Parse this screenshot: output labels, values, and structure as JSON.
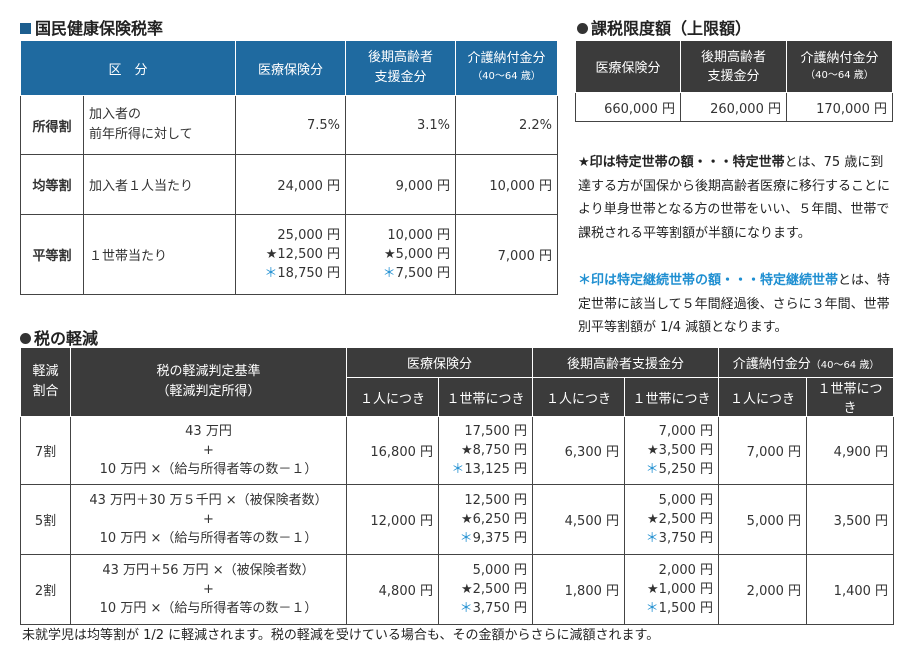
{
  "rates": {
    "title": "国民健康保険税率",
    "headers": [
      "区　分",
      "医療保険分",
      "後期高齢者\n支援金分",
      "介護納付金分",
      "（40～64 歳）"
    ],
    "rows": [
      {
        "label": "所得割",
        "desc": "加入者の\n前年所得に対して",
        "medical": "7.5%",
        "support": "3.1%",
        "care": "2.2%"
      },
      {
        "label": "均等割",
        "desc": "加入者１人当たり",
        "medical": "24,000 円",
        "support": "9,000 円",
        "care": "10,000 円"
      },
      {
        "label": "平等割",
        "desc": "１世帯当たり",
        "medical": [
          "25,000 円",
          "★12,500 円",
          "18,750 円"
        ],
        "support": [
          "10,000 円",
          "★5,000 円",
          "7,500 円"
        ],
        "care": "7,000 円"
      }
    ]
  },
  "limits": {
    "title": "課税限度額（上限額）",
    "headers": [
      "医療保険分",
      "後期高齢者\n支援金分",
      "介護納付金分",
      "（40～64 歳）"
    ],
    "values": [
      "660,000 円",
      "260,000 円",
      "170,000 円"
    ]
  },
  "notes": {
    "star_lead": "★印は特定世帯の額・・・特定世帯",
    "star_body": "とは、75 歳に到達する方が国保から後期高齢者医療に移行することにより単身世帯となる方の世帯をいい、５年間、世帯で課税される平等割額が半額になります。",
    "blue_lead": "＊印は特定継続世帯の額・・・特定継続世帯",
    "blue_body": "とは、特定世帯に該当して５年間経過後、さらに３年間、世帯別平等割額が 1/4 減額となります。"
  },
  "reduction": {
    "title": "税の軽減",
    "headers": {
      "ratio": "軽減\n割合",
      "criteria": "税の軽減判定基準\n（軽減判定所得）",
      "medical": "医療保険分",
      "support": "後期高齢者支援金分",
      "care": "介護納付金分",
      "care_sub": "（40～64 歳）",
      "per_person": "１人につき",
      "per_household": "１世帯につき"
    },
    "rows": [
      {
        "ratio": "7割",
        "criteria": [
          "43 万円",
          "+",
          "10 万円 ×（給与所得者等の数－１）"
        ],
        "med_p": "16,800 円",
        "med_h": [
          "17,500 円",
          "★8,750 円",
          "13,125 円"
        ],
        "sup_p": "6,300 円",
        "sup_h": [
          "7,000 円",
          "★3,500 円",
          "5,250 円"
        ],
        "care_p": "7,000 円",
        "care_h": "4,900 円"
      },
      {
        "ratio": "5割",
        "criteria": [
          "43 万円＋30 万５千円 ×（被保険者数）",
          "+",
          "10 万円 ×（給与所得者等の数－１）"
        ],
        "med_p": "12,000 円",
        "med_h": [
          "12,500 円",
          "★6,250 円",
          "9,375 円"
        ],
        "sup_p": "4,500 円",
        "sup_h": [
          "5,000 円",
          "★2,500 円",
          "3,750 円"
        ],
        "care_p": "5,000 円",
        "care_h": "3,500 円"
      },
      {
        "ratio": "2割",
        "criteria": [
          "43 万円＋56 万円 ×（被保険者数）",
          "+",
          "10 万円 ×（給与所得者等の数－１）"
        ],
        "med_p": "4,800 円",
        "med_h": [
          "5,000 円",
          "★2,500 円",
          "3,750 円"
        ],
        "sup_p": "1,800 円",
        "sup_h": [
          "2,000 円",
          "★1,000 円",
          "1,500 円"
        ],
        "care_p": "2,000 円",
        "care_h": "1,400 円"
      }
    ]
  },
  "footer": "未就学児は均等割が 1/2 に軽減されます。税の軽減を受けている場合も、その金額からさらに減額されます。",
  "colors": {
    "header_blue": "#1f6aa0",
    "header_dark": "#3b3b3b",
    "asterisk_blue": "#1f8fd1"
  }
}
